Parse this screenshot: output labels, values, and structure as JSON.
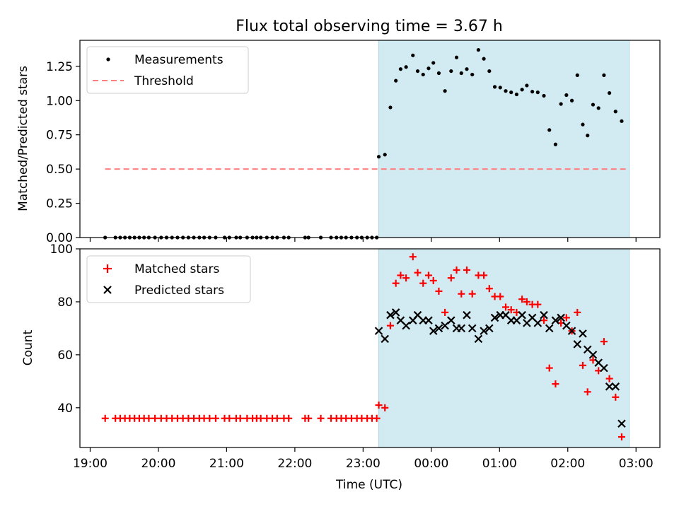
{
  "figure_title": "Flux total observing time = 3.67 h",
  "colors": {
    "shade": "#add8e6",
    "threshold": "#ff7f7f",
    "matched": "#ff0000",
    "predicted": "#000000",
    "measurement": "#000000"
  },
  "chart_data": [
    {
      "id": "ratio",
      "type": "scatter",
      "title": "Flux total observing time = 3.67 h",
      "xlabel": "",
      "ylabel": "Matched/Predicted stars",
      "xlim": [
        -0.15,
        8.35
      ],
      "ylim": [
        0,
        1.44
      ],
      "yticks": [
        0,
        0.25,
        0.5,
        0.75,
        1.0,
        1.25
      ],
      "ytick_labels": [
        "0.00",
        "0.25",
        "0.50",
        "0.75",
        "1.00",
        "1.25"
      ],
      "x_unit": "hours after 19:00 UTC",
      "shaded_interval": [
        4.23,
        7.9
      ],
      "legend": {
        "location": "upper-left",
        "entries": [
          "Measurements",
          "Threshold"
        ]
      },
      "threshold": {
        "name": "Threshold",
        "y": 0.5,
        "x_range": [
          0.22,
          7.9
        ]
      },
      "series": [
        {
          "name": "Measurements",
          "points": [
            [
              0.22,
              0
            ],
            [
              0.37,
              0
            ],
            [
              0.44,
              0
            ],
            [
              0.51,
              0
            ],
            [
              0.58,
              0
            ],
            [
              0.65,
              0
            ],
            [
              0.72,
              0
            ],
            [
              0.79,
              0
            ],
            [
              0.86,
              0
            ],
            [
              0.95,
              0
            ],
            [
              1.04,
              0
            ],
            [
              1.12,
              0
            ],
            [
              1.2,
              0
            ],
            [
              1.28,
              0
            ],
            [
              1.36,
              0
            ],
            [
              1.44,
              0
            ],
            [
              1.52,
              0
            ],
            [
              1.6,
              0
            ],
            [
              1.67,
              0
            ],
            [
              1.75,
              0
            ],
            [
              1.84,
              0
            ],
            [
              1.97,
              0
            ],
            [
              2.04,
              0
            ],
            [
              2.14,
              0
            ],
            [
              2.2,
              0
            ],
            [
              2.3,
              0
            ],
            [
              2.38,
              0
            ],
            [
              2.44,
              0
            ],
            [
              2.5,
              0
            ],
            [
              2.59,
              0
            ],
            [
              2.67,
              0
            ],
            [
              2.74,
              0
            ],
            [
              2.84,
              0
            ],
            [
              2.91,
              0
            ],
            [
              3.15,
              0
            ],
            [
              3.2,
              0
            ],
            [
              3.38,
              0
            ],
            [
              3.53,
              0
            ],
            [
              3.61,
              0
            ],
            [
              3.68,
              0
            ],
            [
              3.75,
              0
            ],
            [
              3.83,
              0
            ],
            [
              3.91,
              0
            ],
            [
              3.98,
              0
            ],
            [
              4.06,
              0
            ],
            [
              4.13,
              0
            ],
            [
              4.2,
              0
            ],
            [
              4.23,
              0.59
            ],
            [
              4.32,
              0.605
            ],
            [
              4.4,
              0.95
            ],
            [
              4.48,
              1.145
            ],
            [
              4.55,
              1.23
            ],
            [
              4.63,
              1.245
            ],
            [
              4.73,
              1.33
            ],
            [
              4.8,
              1.215
            ],
            [
              4.88,
              1.19
            ],
            [
              4.96,
              1.235
            ],
            [
              5.03,
              1.275
            ],
            [
              5.11,
              1.2
            ],
            [
              5.2,
              1.07
            ],
            [
              5.29,
              1.215
            ],
            [
              5.37,
              1.315
            ],
            [
              5.44,
              1.2
            ],
            [
              5.52,
              1.23
            ],
            [
              5.6,
              1.19
            ],
            [
              5.69,
              1.37
            ],
            [
              5.77,
              1.305
            ],
            [
              5.85,
              1.215
            ],
            [
              5.93,
              1.1
            ],
            [
              6.01,
              1.095
            ],
            [
              6.09,
              1.07
            ],
            [
              6.17,
              1.06
            ],
            [
              6.25,
              1.045
            ],
            [
              6.33,
              1.08
            ],
            [
              6.4,
              1.11
            ],
            [
              6.48,
              1.065
            ],
            [
              6.56,
              1.06
            ],
            [
              6.65,
              1.035
            ],
            [
              6.73,
              0.785
            ],
            [
              6.82,
              0.68
            ],
            [
              6.9,
              0.975
            ],
            [
              6.98,
              1.04
            ],
            [
              7.06,
              1.0
            ],
            [
              7.14,
              1.185
            ],
            [
              7.22,
              0.825
            ],
            [
              7.29,
              0.745
            ],
            [
              7.37,
              0.97
            ],
            [
              7.45,
              0.945
            ],
            [
              7.53,
              1.185
            ],
            [
              7.61,
              1.055
            ],
            [
              7.7,
              0.92
            ],
            [
              7.79,
              0.85
            ]
          ]
        }
      ]
    },
    {
      "id": "counts",
      "type": "scatter",
      "title": "",
      "xlabel": "Time (UTC)",
      "ylabel": "Count",
      "xlim": [
        -0.15,
        8.35
      ],
      "ylim": [
        25,
        100
      ],
      "yticks": [
        40,
        60,
        80,
        100
      ],
      "ytick_labels": [
        "40",
        "60",
        "80",
        "100"
      ],
      "xticks": [
        0,
        1,
        2,
        3,
        4,
        5,
        6,
        7,
        8
      ],
      "xtick_labels": [
        "19:00",
        "20:00",
        "21:00",
        "22:00",
        "23:00",
        "00:00",
        "01:00",
        "02:00",
        "03:00"
      ],
      "x_unit": "hours after 19:00 UTC",
      "shaded_interval": [
        4.23,
        7.9
      ],
      "legend": {
        "location": "upper-left",
        "entries": [
          "Matched stars",
          "Predicted stars"
        ]
      },
      "series": [
        {
          "name": "Matched stars",
          "marker": "plus",
          "points": [
            [
              0.22,
              36
            ],
            [
              0.37,
              36
            ],
            [
              0.44,
              36
            ],
            [
              0.51,
              36
            ],
            [
              0.58,
              36
            ],
            [
              0.65,
              36
            ],
            [
              0.72,
              36
            ],
            [
              0.79,
              36
            ],
            [
              0.86,
              36
            ],
            [
              0.95,
              36
            ],
            [
              1.04,
              36
            ],
            [
              1.12,
              36
            ],
            [
              1.2,
              36
            ],
            [
              1.28,
              36
            ],
            [
              1.36,
              36
            ],
            [
              1.44,
              36
            ],
            [
              1.52,
              36
            ],
            [
              1.6,
              36
            ],
            [
              1.67,
              36
            ],
            [
              1.75,
              36
            ],
            [
              1.84,
              36
            ],
            [
              1.97,
              36
            ],
            [
              2.04,
              36
            ],
            [
              2.14,
              36
            ],
            [
              2.2,
              36
            ],
            [
              2.3,
              36
            ],
            [
              2.38,
              36
            ],
            [
              2.44,
              36
            ],
            [
              2.5,
              36
            ],
            [
              2.59,
              36
            ],
            [
              2.67,
              36
            ],
            [
              2.74,
              36
            ],
            [
              2.84,
              36
            ],
            [
              2.91,
              36
            ],
            [
              3.15,
              36
            ],
            [
              3.2,
              36
            ],
            [
              3.38,
              36
            ],
            [
              3.53,
              36
            ],
            [
              3.61,
              36
            ],
            [
              3.68,
              36
            ],
            [
              3.75,
              36
            ],
            [
              3.83,
              36
            ],
            [
              3.91,
              36
            ],
            [
              3.98,
              36
            ],
            [
              4.06,
              36
            ],
            [
              4.13,
              36
            ],
            [
              4.2,
              36
            ],
            [
              4.23,
              41
            ],
            [
              4.32,
              40
            ],
            [
              4.4,
              71
            ],
            [
              4.48,
              87
            ],
            [
              4.55,
              90
            ],
            [
              4.63,
              89
            ],
            [
              4.73,
              97
            ],
            [
              4.8,
              91
            ],
            [
              4.88,
              87
            ],
            [
              4.96,
              90
            ],
            [
              5.03,
              88
            ],
            [
              5.11,
              84
            ],
            [
              5.2,
              76
            ],
            [
              5.29,
              89
            ],
            [
              5.37,
              92
            ],
            [
              5.44,
              83
            ],
            [
              5.52,
              92
            ],
            [
              5.6,
              83
            ],
            [
              5.69,
              90
            ],
            [
              5.77,
              90
            ],
            [
              5.85,
              85
            ],
            [
              5.93,
              82
            ],
            [
              6.01,
              82
            ],
            [
              6.09,
              78
            ],
            [
              6.17,
              77
            ],
            [
              6.25,
              76
            ],
            [
              6.33,
              81
            ],
            [
              6.4,
              80
            ],
            [
              6.48,
              79
            ],
            [
              6.56,
              79
            ],
            [
              6.65,
              73
            ],
            [
              6.73,
              55
            ],
            [
              6.82,
              49
            ],
            [
              6.9,
              72
            ],
            [
              6.98,
              74
            ],
            [
              7.06,
              69
            ],
            [
              7.14,
              76
            ],
            [
              7.22,
              56
            ],
            [
              7.29,
              46
            ],
            [
              7.37,
              58
            ],
            [
              7.45,
              54
            ],
            [
              7.53,
              65
            ],
            [
              7.61,
              51
            ],
            [
              7.7,
              44
            ],
            [
              7.79,
              29
            ]
          ]
        },
        {
          "name": "Predicted stars",
          "marker": "x",
          "points": [
            [
              4.23,
              69
            ],
            [
              4.32,
              66
            ],
            [
              4.4,
              75
            ],
            [
              4.48,
              76
            ],
            [
              4.55,
              73
            ],
            [
              4.63,
              71
            ],
            [
              4.73,
              73
            ],
            [
              4.8,
              75
            ],
            [
              4.88,
              73
            ],
            [
              4.96,
              73
            ],
            [
              5.03,
              69
            ],
            [
              5.11,
              70
            ],
            [
              5.2,
              71
            ],
            [
              5.29,
              73
            ],
            [
              5.37,
              70
            ],
            [
              5.44,
              70
            ],
            [
              5.52,
              75
            ],
            [
              5.6,
              70
            ],
            [
              5.69,
              66
            ],
            [
              5.77,
              69
            ],
            [
              5.85,
              70
            ],
            [
              5.93,
              74
            ],
            [
              6.01,
              75
            ],
            [
              6.09,
              75
            ],
            [
              6.17,
              73
            ],
            [
              6.25,
              73
            ],
            [
              6.33,
              75
            ],
            [
              6.4,
              72
            ],
            [
              6.48,
              74
            ],
            [
              6.56,
              72
            ],
            [
              6.65,
              75
            ],
            [
              6.73,
              70
            ],
            [
              6.82,
              73
            ],
            [
              6.9,
              74
            ],
            [
              6.98,
              71
            ],
            [
              7.06,
              69
            ],
            [
              7.14,
              64
            ],
            [
              7.22,
              68
            ],
            [
              7.29,
              62
            ],
            [
              7.37,
              60
            ],
            [
              7.45,
              57
            ],
            [
              7.53,
              55
            ],
            [
              7.61,
              48
            ],
            [
              7.7,
              48
            ],
            [
              7.79,
              34
            ]
          ]
        }
      ]
    }
  ]
}
